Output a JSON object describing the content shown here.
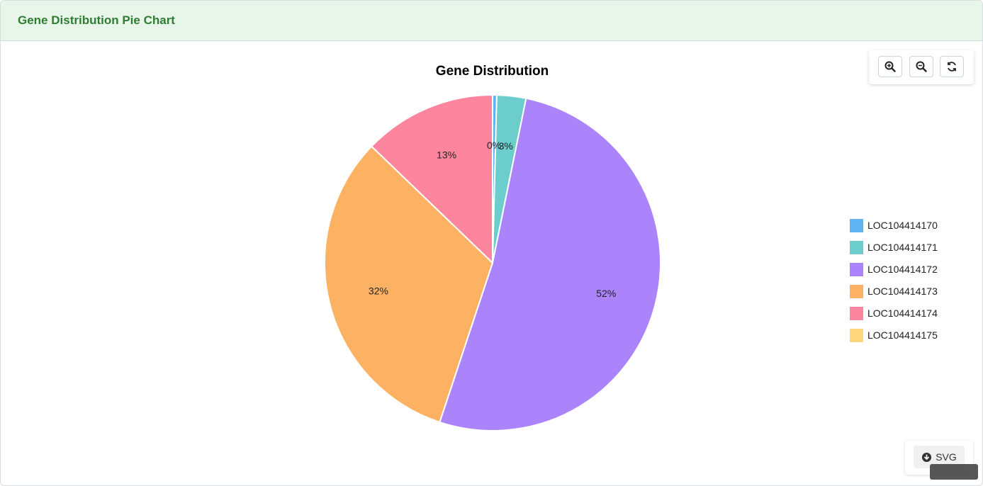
{
  "header": {
    "title": "Gene Distribution Pie Chart"
  },
  "toolbar": {
    "zoom_in_icon": "zoom-in-icon",
    "zoom_out_icon": "zoom-out-icon",
    "reset_icon": "refresh-icon"
  },
  "download": {
    "label": "SVG",
    "icon": "download-circle-icon"
  },
  "colors": {
    "header_bg": "#e8f5e9",
    "header_text": "#2e7d32"
  },
  "chart_data": {
    "type": "pie",
    "title": "Gene Distribution",
    "legend_position": "right",
    "slices": [
      {
        "label": "LOC104414170",
        "value": 0.4,
        "display": "0%",
        "color": "#5fb3f0"
      },
      {
        "label": "LOC104414171",
        "value": 2.8,
        "display": "3%",
        "color": "#6ccdcd"
      },
      {
        "label": "LOC104414172",
        "value": 51.9,
        "display": "52%",
        "color": "#ab84fc"
      },
      {
        "label": "LOC104414173",
        "value": 32.1,
        "display": "32%",
        "color": "#fdb163"
      },
      {
        "label": "LOC104414174",
        "value": 12.8,
        "display": "13%",
        "color": "#fe859e"
      },
      {
        "label": "LOC104414175",
        "value": 0,
        "display": "",
        "color": "#fed67e"
      }
    ]
  }
}
